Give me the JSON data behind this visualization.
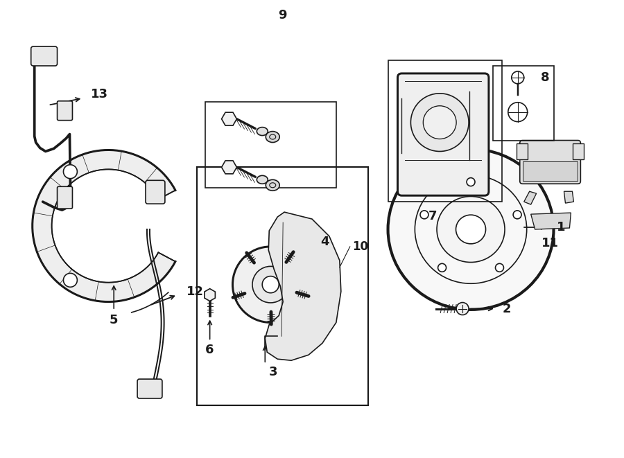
{
  "background_color": "#ffffff",
  "line_color": "#1a1a1a",
  "line_width": 1.2,
  "fig_width": 9.0,
  "fig_height": 6.61,
  "font_size": 13,
  "font_weight": "bold"
}
